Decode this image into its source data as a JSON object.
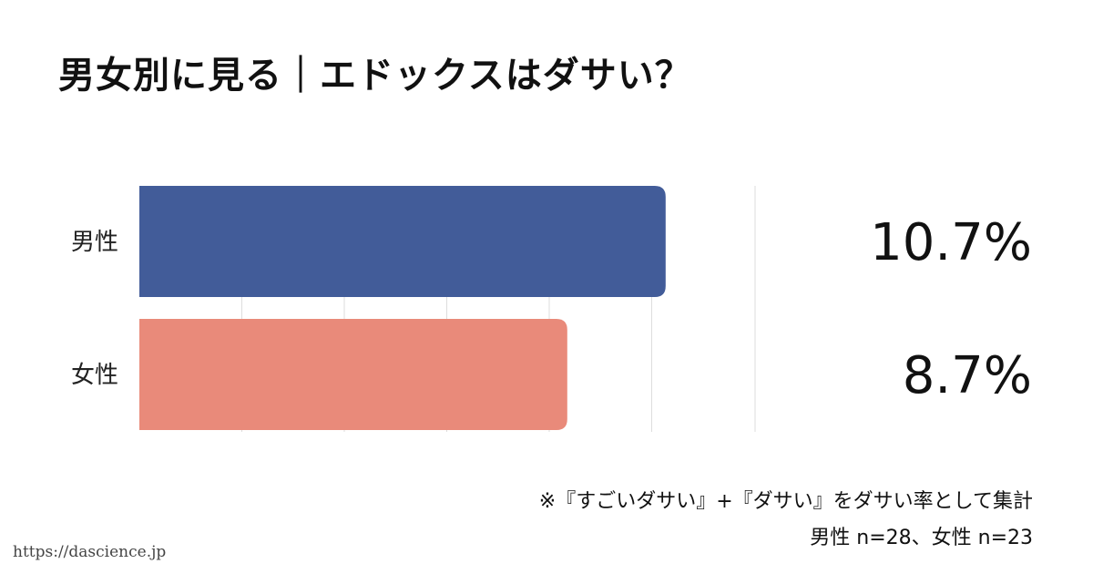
{
  "title": "男女別に見る｜エドックスはダサい？",
  "chart_data": {
    "type": "bar",
    "orientation": "horizontal",
    "categories": [
      "男性",
      "女性"
    ],
    "values": [
      10.7,
      8.7
    ],
    "value_labels": [
      "10.7%",
      "8.7%"
    ],
    "unit": "%",
    "xlim": [
      0,
      12.5
    ],
    "grid": true,
    "colors": [
      "#425C99",
      "#E98A7A"
    ]
  },
  "notes": {
    "line1": "※『すごいダサい』+『ダサい』をダサい率として集計",
    "line2": "男性 n=28、女性 n=23"
  },
  "source": "https://dascience.jp"
}
